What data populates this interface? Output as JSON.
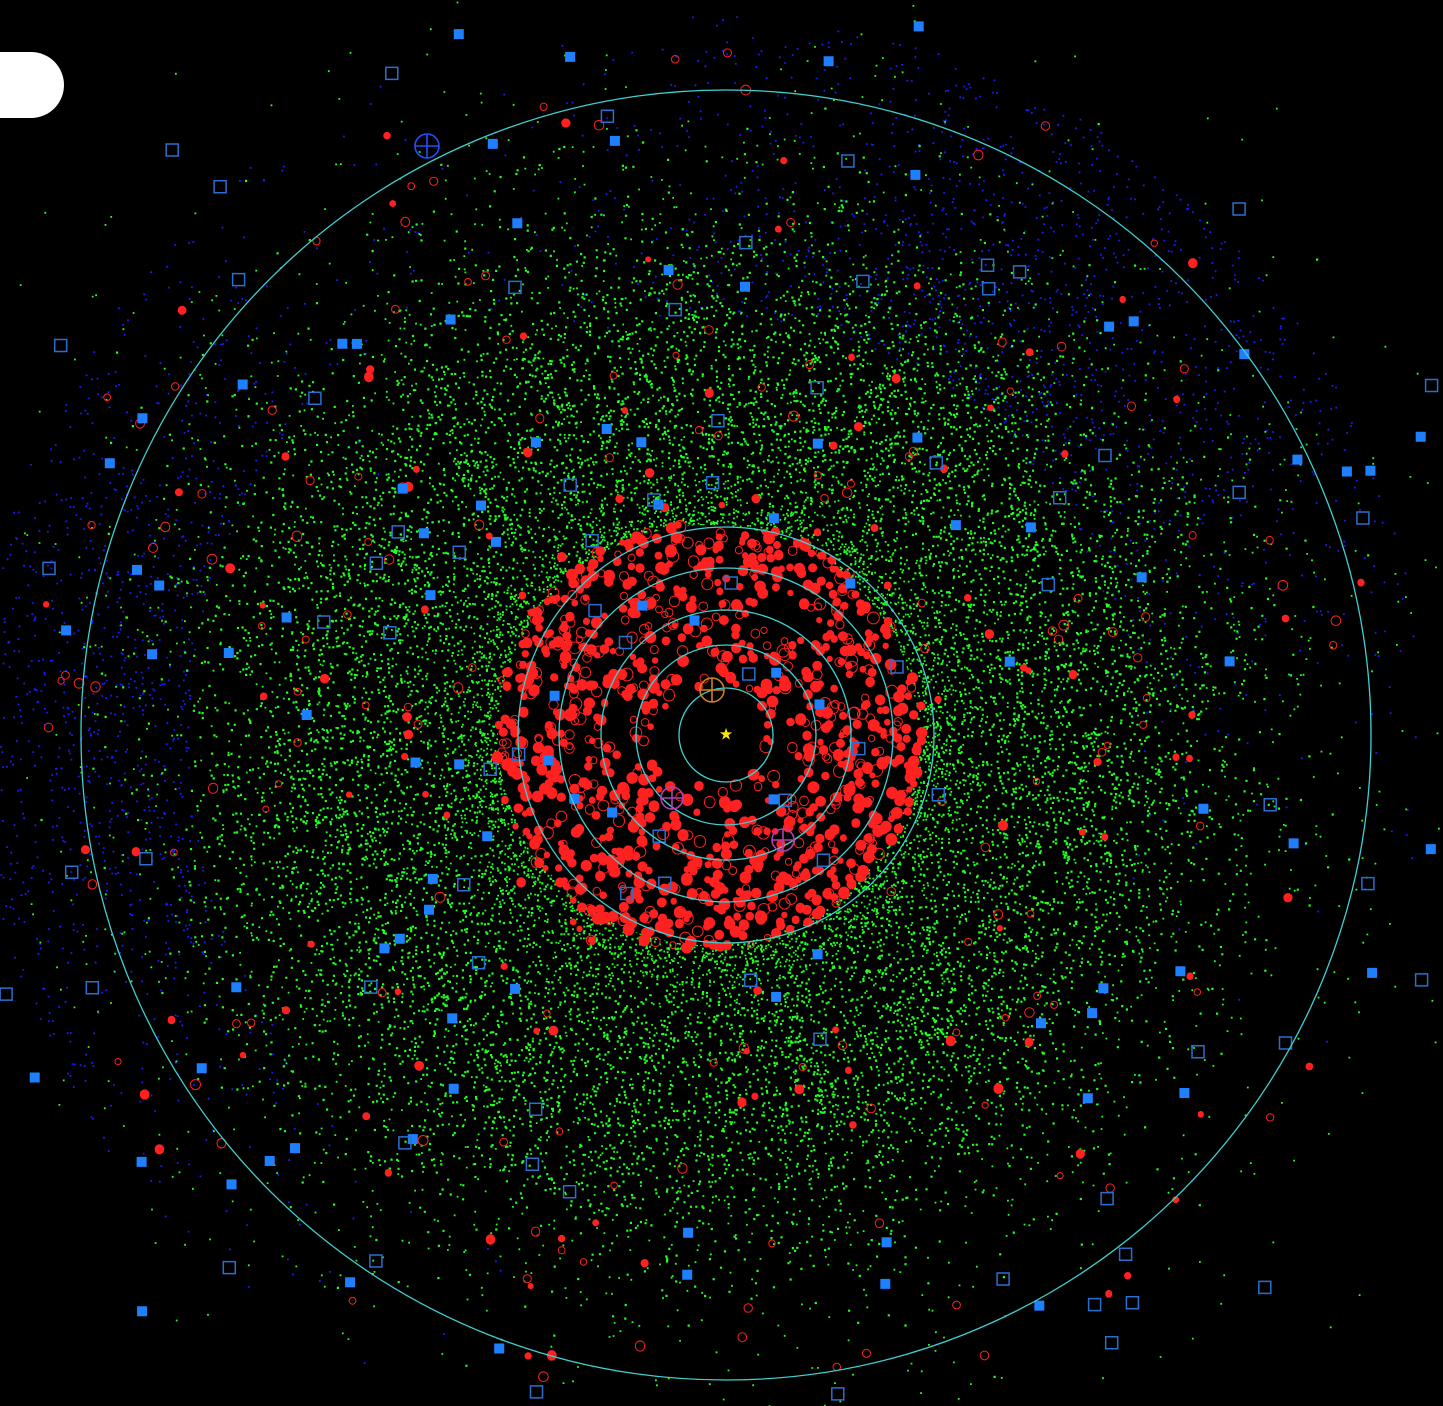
{
  "diagram": {
    "type": "solar-system-top-down-plot",
    "background_color": "#000000",
    "center_marker": {
      "name": "sun",
      "glyph": "★",
      "color": "#ffe600"
    },
    "orbit_color": "#40d0d0",
    "orbits_au": [
      1.0,
      1.52,
      5.2,
      9.58,
      19.2,
      30.05
    ],
    "view_radius_au": 35,
    "populations": [
      {
        "id": "inner-objects",
        "symbol": "filled-circle",
        "color": "#ff2020"
      },
      {
        "id": "main-belt",
        "symbol": "dot",
        "color": "#22ff22"
      },
      {
        "id": "kuiper-belt",
        "symbol": "dot",
        "color": "#22ff22"
      },
      {
        "id": "scattered-objects",
        "symbol": "filled-square",
        "color": "#1e7fff"
      },
      {
        "id": "distant-objects",
        "symbol": "open-square",
        "color": "#2a6fd0"
      },
      {
        "id": "outer-cloud",
        "symbol": "dot",
        "color": "#1a1aff"
      }
    ],
    "planet_markers": [
      {
        "name": "earth",
        "color": "#d08020"
      },
      {
        "name": "mars",
        "color": "#b040b0"
      },
      {
        "name": "jupiter",
        "color": "#b040b0"
      },
      {
        "name": "neptune",
        "color": "#2050ff"
      }
    ]
  }
}
